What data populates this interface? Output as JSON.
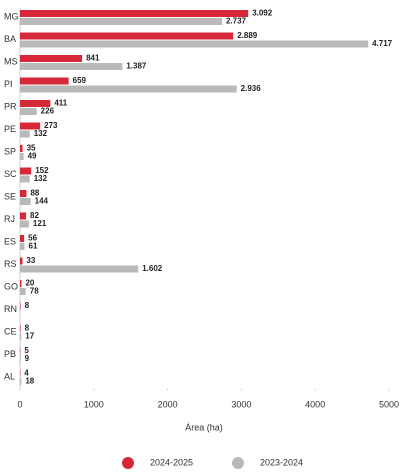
{
  "chart_data": {
    "type": "bar",
    "orientation": "horizontal",
    "categories": [
      "MG",
      "BA",
      "MS",
      "PI",
      "PR",
      "PE",
      "SP",
      "SC",
      "SE",
      "RJ",
      "ES",
      "RS",
      "GO",
      "RN",
      "CE",
      "PB",
      "AL"
    ],
    "series": [
      {
        "name": "2024-2025",
        "color": "#d62839",
        "values": [
          3092,
          2889,
          841,
          659,
          411,
          273,
          35,
          152,
          88,
          82,
          56,
          33,
          20,
          8,
          8,
          5,
          4
        ],
        "value_labels": [
          "3.092",
          "2.889",
          "841",
          "659",
          "411",
          "273",
          "35",
          "152",
          "88",
          "82",
          "56",
          "33",
          "20",
          "8",
          "8",
          "5",
          "4"
        ]
      },
      {
        "name": "2023-2024",
        "color": "#b9b9b9",
        "values": [
          2737,
          4717,
          1387,
          2936,
          226,
          132,
          49,
          132,
          144,
          121,
          61,
          1602,
          78,
          null,
          17,
          9,
          18
        ],
        "value_labels": [
          "2.737",
          "4.717",
          "1.387",
          "2.936",
          "226",
          "132",
          "49",
          "132",
          "144",
          "121",
          "61",
          "1.602",
          "78",
          null,
          "17",
          "9",
          "18"
        ]
      }
    ],
    "xlabel": "Área (ha)",
    "xlim": [
      0,
      5000
    ],
    "xticks": [
      0,
      1000,
      2000,
      3000,
      4000,
      5000
    ],
    "legend": "bottom"
  }
}
